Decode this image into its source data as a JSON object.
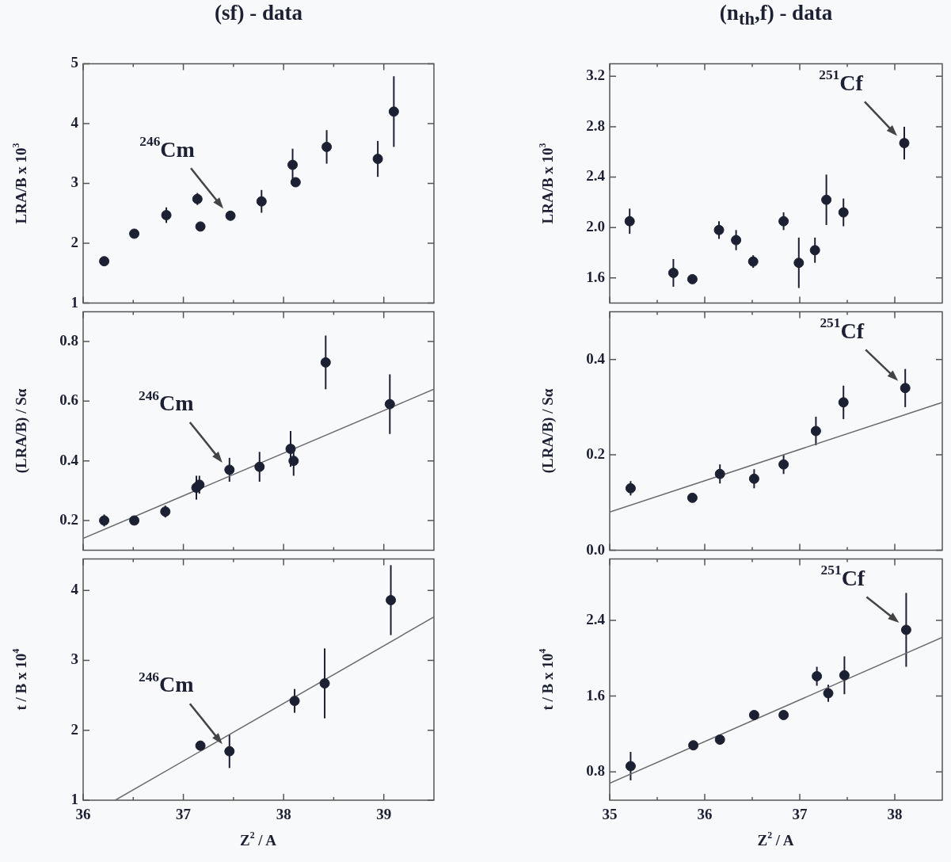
{
  "chart_data": [
    {
      "type": "scatter",
      "title": "(sf) - data",
      "ylabel": "LRA/B x 10$^{3}$",
      "xlim": [
        36,
        39.5
      ],
      "xticks": [
        36,
        {
          "value": 36.5,
          "label": null
        },
        37,
        {
          "value": 37.5,
          "label": null
        },
        38,
        {
          "value": 38.5,
          "label": null
        },
        39
      ],
      "ylim": [
        1,
        5
      ],
      "yticks": [
        1,
        2,
        3,
        4,
        5
      ],
      "tick_labels": "y",
      "marker": "circle",
      "annotations": [
        {
          "text": "$^{246}$Cm",
          "x": 37.47,
          "y": 2.46
        }
      ],
      "series": [
        {
          "color": "#1c2033",
          "x": [
            36.21,
            36.51,
            36.83,
            37.14,
            37.17,
            37.47,
            37.78,
            38.09,
            38.12,
            38.43,
            38.94,
            39.1
          ],
          "values": [
            1.7,
            2.16,
            2.47,
            2.74,
            2.28,
            2.46,
            2.7,
            3.31,
            3.02,
            3.61,
            3.41,
            4.2
          ],
          "errors": [
            null,
            null,
            0.13,
            0.1,
            null,
            0.05,
            0.19,
            0.27,
            null,
            0.28,
            0.3,
            0.59
          ]
        }
      ]
    },
    {
      "type": "scatter",
      "ylabel": "(LRA/B) / Sα",
      "xlim": [
        36,
        39.5
      ],
      "xticks": [
        36,
        {
          "value": 36.5,
          "label": null
        },
        37,
        {
          "value": 37.5,
          "label": null
        },
        38,
        {
          "value": 38.5,
          "label": null
        },
        39
      ],
      "ylim": [
        0.1,
        0.9
      ],
      "yticks": [
        0.2,
        0.4,
        0.6,
        0.8
      ],
      "tick_labels": "y",
      "marker": "circle",
      "annotations": [
        {
          "text": "$^{246}$Cm",
          "x": 37.46,
          "y": 0.37
        }
      ],
      "series": [
        {
          "color": "#1c2033",
          "x": [
            36.21,
            36.51,
            36.82,
            37.13,
            37.16,
            37.46,
            37.76,
            38.07,
            38.1,
            38.42,
            39.06
          ],
          "values": [
            0.2,
            0.2,
            0.23,
            0.31,
            0.32,
            0.37,
            0.38,
            0.44,
            0.4,
            0.73,
            0.59
          ],
          "errors": [
            0.02,
            null,
            0.02,
            0.04,
            0.03,
            0.04,
            0.05,
            0.06,
            0.05,
            0.09,
            0.1
          ]
        },
        {
          "type": "line",
          "color": "#6b6b6b",
          "marker": "none",
          "x": [
            36,
            39.5
          ],
          "values": [
            0.14,
            0.64
          ]
        }
      ]
    },
    {
      "type": "scatter",
      "ylabel": "t / B x 10$^{4}$",
      "xlabel": "Z$^{2}$ / A",
      "xlim": [
        36,
        39.5
      ],
      "xticks": [
        36,
        {
          "value": 36.5,
          "label": null
        },
        37,
        {
          "value": 37.5,
          "label": null
        },
        38,
        {
          "value": 38.5,
          "label": null
        },
        39
      ],
      "ylim": [
        1,
        4.45
      ],
      "yticks": [
        1,
        2,
        3,
        4
      ],
      "marker": "circle",
      "annotations": [
        {
          "text": "$^{246}$Cm",
          "x": 37.46,
          "y": 1.7
        }
      ],
      "series": [
        {
          "color": "#1c2033",
          "x": [
            37.17,
            37.46,
            38.11,
            38.41,
            39.07
          ],
          "values": [
            1.78,
            1.7,
            2.42,
            2.67,
            3.86
          ],
          "errors": [
            0.07,
            0.24,
            0.17,
            0.5,
            0.5
          ]
        },
        {
          "type": "line",
          "color": "#6b6b6b",
          "marker": "none",
          "x": [
            36.32,
            39.5
          ],
          "values": [
            1,
            3.62
          ]
        }
      ]
    },
    {
      "type": "scatter",
      "title": "(n$_{th}$,f) - data",
      "ylabel": "LRA/B x 10$^{3}$",
      "xlim": [
        35,
        38.5
      ],
      "xticks": [
        35,
        {
          "value": 35.5,
          "label": null
        },
        36,
        {
          "value": 36.5,
          "label": null
        },
        37,
        {
          "value": 37.5,
          "label": null
        },
        38
      ],
      "ylim": [
        1.4,
        3.3
      ],
      "yticks": [
        1.6,
        {
          "value": 2,
          "label": "2.0"
        },
        2.4,
        2.8,
        3.2
      ],
      "tick_labels": "y",
      "marker": "circle",
      "annotations": [
        {
          "text": "$^{251}$Cf",
          "x": 38.1,
          "y": 2.67
        }
      ],
      "series": [
        {
          "color": "#1c2033",
          "x": [
            35.21,
            35.67,
            35.87,
            36.15,
            36.33,
            36.51,
            36.83,
            36.99,
            37.16,
            37.28,
            37.46,
            38.1
          ],
          "values": [
            2.05,
            1.64,
            1.59,
            1.98,
            1.9,
            1.73,
            2.05,
            1.72,
            1.82,
            2.22,
            2.12,
            2.67
          ],
          "errors": [
            0.1,
            0.11,
            null,
            0.07,
            0.08,
            0.05,
            0.07,
            0.2,
            0.1,
            0.2,
            0.11,
            0.13
          ]
        }
      ]
    },
    {
      "type": "scatter",
      "ylabel": "(LRA/B) / Sα",
      "xlim": [
        35,
        38.5
      ],
      "xticks": [
        35,
        {
          "value": 35.5,
          "label": null
        },
        36,
        {
          "value": 36.5,
          "label": null
        },
        37,
        {
          "value": 37.5,
          "label": null
        },
        38
      ],
      "ylim": [
        0,
        0.5
      ],
      "yticks": [
        {
          "value": 0,
          "label": "0.0"
        },
        0.2,
        0.4
      ],
      "tick_labels": "y",
      "marker": "circle",
      "annotations": [
        {
          "text": "$^{251}$Cf",
          "x": 38.11,
          "y": 0.34
        }
      ],
      "series": [
        {
          "color": "#1c2033",
          "x": [
            35.22,
            35.87,
            36.16,
            36.52,
            36.83,
            37.17,
            37.46,
            38.11
          ],
          "values": [
            0.13,
            0.11,
            0.16,
            0.15,
            0.18,
            0.25,
            0.31,
            0.34
          ],
          "errors": [
            0.015,
            null,
            0.02,
            0.02,
            0.02,
            0.03,
            0.035,
            0.04
          ]
        },
        {
          "type": "line",
          "color": "#6b6b6b",
          "marker": "none",
          "x": [
            35,
            38.5
          ],
          "values": [
            0.08,
            0.31
          ]
        }
      ]
    },
    {
      "type": "scatter",
      "ylabel": "t / B x 10$^{4}$",
      "xlabel": "Z$^{2}$ / A",
      "xlim": [
        35,
        38.5
      ],
      "xticks": [
        35,
        {
          "value": 35.5,
          "label": null
        },
        36,
        {
          "value": 36.5,
          "label": null
        },
        37,
        {
          "value": 37.5,
          "label": null
        },
        38
      ],
      "ylim": [
        0.5,
        3.05
      ],
      "yticks": [
        0.8,
        1.6,
        2.4
      ],
      "marker": "circle",
      "annotations": [
        {
          "text": "$^{251}$Cf",
          "x": 38.12,
          "y": 2.3
        }
      ],
      "series": [
        {
          "color": "#1c2033",
          "x": [
            35.22,
            35.88,
            36.16,
            36.52,
            36.83,
            37.18,
            37.3,
            37.47,
            38.12
          ],
          "values": [
            0.86,
            1.08,
            1.14,
            1.4,
            1.4,
            1.81,
            1.63,
            1.82,
            2.3
          ],
          "errors": [
            0.15,
            null,
            null,
            null,
            null,
            0.1,
            0.09,
            0.2,
            0.39
          ]
        },
        {
          "type": "line",
          "color": "#6b6b6b",
          "marker": "none",
          "x": [
            35,
            38.5
          ],
          "values": [
            0.68,
            2.22
          ]
        }
      ]
    }
  ]
}
